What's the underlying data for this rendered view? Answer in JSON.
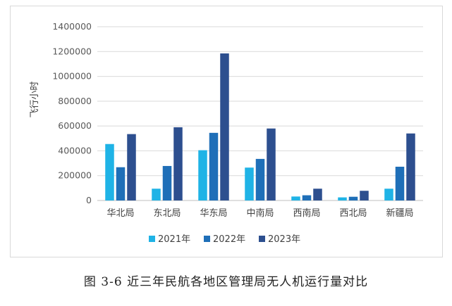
{
  "chart_data": {
    "type": "bar",
    "categories": [
      "华北局",
      "东北局",
      "华东局",
      "中南局",
      "西南局",
      "西北局",
      "新疆局"
    ],
    "series": [
      {
        "name": "2021年",
        "color": "#1fb3e6",
        "values": [
          455000,
          95000,
          405000,
          265000,
          32000,
          25000,
          95000
        ]
      },
      {
        "name": "2022年",
        "color": "#1f6fb8",
        "values": [
          268000,
          278000,
          545000,
          335000,
          42000,
          30000,
          272000
        ]
      },
      {
        "name": "2023年",
        "color": "#2d4f8f",
        "values": [
          535000,
          590000,
          1185000,
          580000,
          95000,
          78000,
          540000
        ]
      }
    ],
    "ylabel": "飞行小时",
    "ylim": [
      0,
      1400000
    ],
    "yticks": [
      0,
      200000,
      400000,
      600000,
      800000,
      1000000,
      1200000,
      1400000
    ],
    "grid": true,
    "legend_position": "bottom"
  },
  "caption": "图 3-6  近三年民航各地区管理局无人机运行量对比"
}
